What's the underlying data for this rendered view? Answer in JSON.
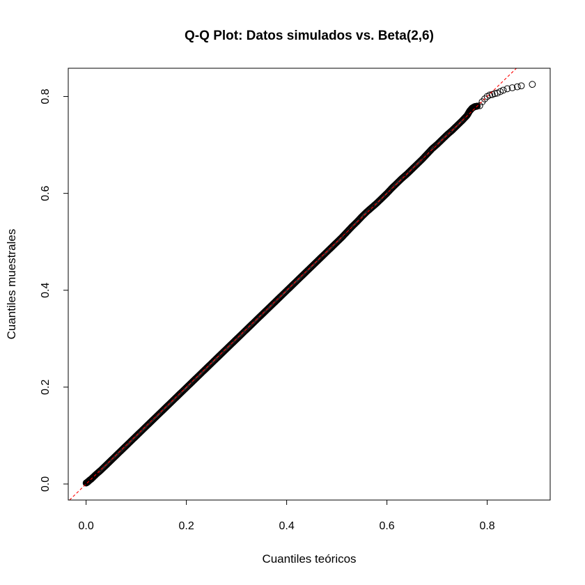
{
  "chart_data": {
    "type": "scatter",
    "title": "Q-Q Plot: Datos simulados vs. Beta(2,6)",
    "xlabel": "Cuantiles teóricos",
    "ylabel": "Cuantiles muestrales",
    "xlim": [
      -0.0356,
      0.9256
    ],
    "ylim": [
      -0.0331,
      0.8583
    ],
    "x_ticks": [
      0.0,
      0.2,
      0.4,
      0.6,
      0.8
    ],
    "x_tick_labels": [
      "0.0",
      "0.2",
      "0.4",
      "0.6",
      "0.8"
    ],
    "y_ticks": [
      0.0,
      0.2,
      0.4,
      0.6,
      0.8
    ],
    "y_tick_labels": [
      "0.0",
      "0.2",
      "0.4",
      "0.6",
      "0.8"
    ],
    "grid": false,
    "reference_line": {
      "intercept": 0,
      "slope": 1,
      "color": "#ff0000",
      "style": "dashed"
    },
    "point_color": "#000000",
    "points": [
      [
        0.0,
        0.002
      ],
      [
        0.003,
        0.004
      ],
      [
        0.006,
        0.007
      ],
      [
        0.01,
        0.01
      ],
      [
        0.014,
        0.014
      ],
      [
        0.02,
        0.02
      ],
      [
        0.03,
        0.029
      ],
      [
        0.04,
        0.039
      ],
      [
        0.05,
        0.049
      ],
      [
        0.06,
        0.059
      ],
      [
        0.07,
        0.069
      ],
      [
        0.08,
        0.079
      ],
      [
        0.09,
        0.089
      ],
      [
        0.1,
        0.099
      ],
      [
        0.11,
        0.109
      ],
      [
        0.12,
        0.119
      ],
      [
        0.13,
        0.129
      ],
      [
        0.14,
        0.139
      ],
      [
        0.15,
        0.149
      ],
      [
        0.16,
        0.159
      ],
      [
        0.17,
        0.169
      ],
      [
        0.18,
        0.179
      ],
      [
        0.19,
        0.189
      ],
      [
        0.2,
        0.199
      ],
      [
        0.21,
        0.209
      ],
      [
        0.22,
        0.219
      ],
      [
        0.23,
        0.229
      ],
      [
        0.24,
        0.239
      ],
      [
        0.25,
        0.249
      ],
      [
        0.26,
        0.259
      ],
      [
        0.27,
        0.269
      ],
      [
        0.28,
        0.279
      ],
      [
        0.29,
        0.289
      ],
      [
        0.3,
        0.299
      ],
      [
        0.31,
        0.309
      ],
      [
        0.32,
        0.319
      ],
      [
        0.33,
        0.329
      ],
      [
        0.34,
        0.339
      ],
      [
        0.35,
        0.349
      ],
      [
        0.36,
        0.359
      ],
      [
        0.37,
        0.369
      ],
      [
        0.38,
        0.379
      ],
      [
        0.39,
        0.389
      ],
      [
        0.4,
        0.399
      ],
      [
        0.41,
        0.409
      ],
      [
        0.42,
        0.419
      ],
      [
        0.43,
        0.429
      ],
      [
        0.44,
        0.439
      ],
      [
        0.45,
        0.449
      ],
      [
        0.46,
        0.459
      ],
      [
        0.47,
        0.469
      ],
      [
        0.48,
        0.479
      ],
      [
        0.49,
        0.489
      ],
      [
        0.5,
        0.499
      ],
      [
        0.51,
        0.509
      ],
      [
        0.52,
        0.52
      ],
      [
        0.53,
        0.531
      ],
      [
        0.54,
        0.541
      ],
      [
        0.55,
        0.552
      ],
      [
        0.56,
        0.562
      ],
      [
        0.57,
        0.571
      ],
      [
        0.58,
        0.58
      ],
      [
        0.59,
        0.59
      ],
      [
        0.6,
        0.6
      ],
      [
        0.61,
        0.611
      ],
      [
        0.62,
        0.621
      ],
      [
        0.63,
        0.631
      ],
      [
        0.64,
        0.64
      ],
      [
        0.65,
        0.65
      ],
      [
        0.66,
        0.66
      ],
      [
        0.67,
        0.67
      ],
      [
        0.68,
        0.681
      ],
      [
        0.69,
        0.692
      ],
      [
        0.7,
        0.701
      ],
      [
        0.71,
        0.711
      ],
      [
        0.72,
        0.721
      ],
      [
        0.73,
        0.73
      ],
      [
        0.74,
        0.74
      ],
      [
        0.75,
        0.75
      ],
      [
        0.76,
        0.761
      ],
      [
        0.765,
        0.77
      ],
      [
        0.77,
        0.776
      ],
      [
        0.775,
        0.779
      ],
      [
        0.78,
        0.78
      ],
      [
        0.785,
        0.781
      ],
      [
        0.79,
        0.789
      ],
      [
        0.795,
        0.795
      ],
      [
        0.8,
        0.8
      ],
      [
        0.805,
        0.803
      ],
      [
        0.81,
        0.804
      ],
      [
        0.815,
        0.806
      ],
      [
        0.82,
        0.807
      ],
      [
        0.826,
        0.81
      ],
      [
        0.832,
        0.813
      ],
      [
        0.84,
        0.816
      ],
      [
        0.85,
        0.818
      ],
      [
        0.86,
        0.82
      ],
      [
        0.868,
        0.822
      ],
      [
        0.89,
        0.825
      ]
    ]
  }
}
